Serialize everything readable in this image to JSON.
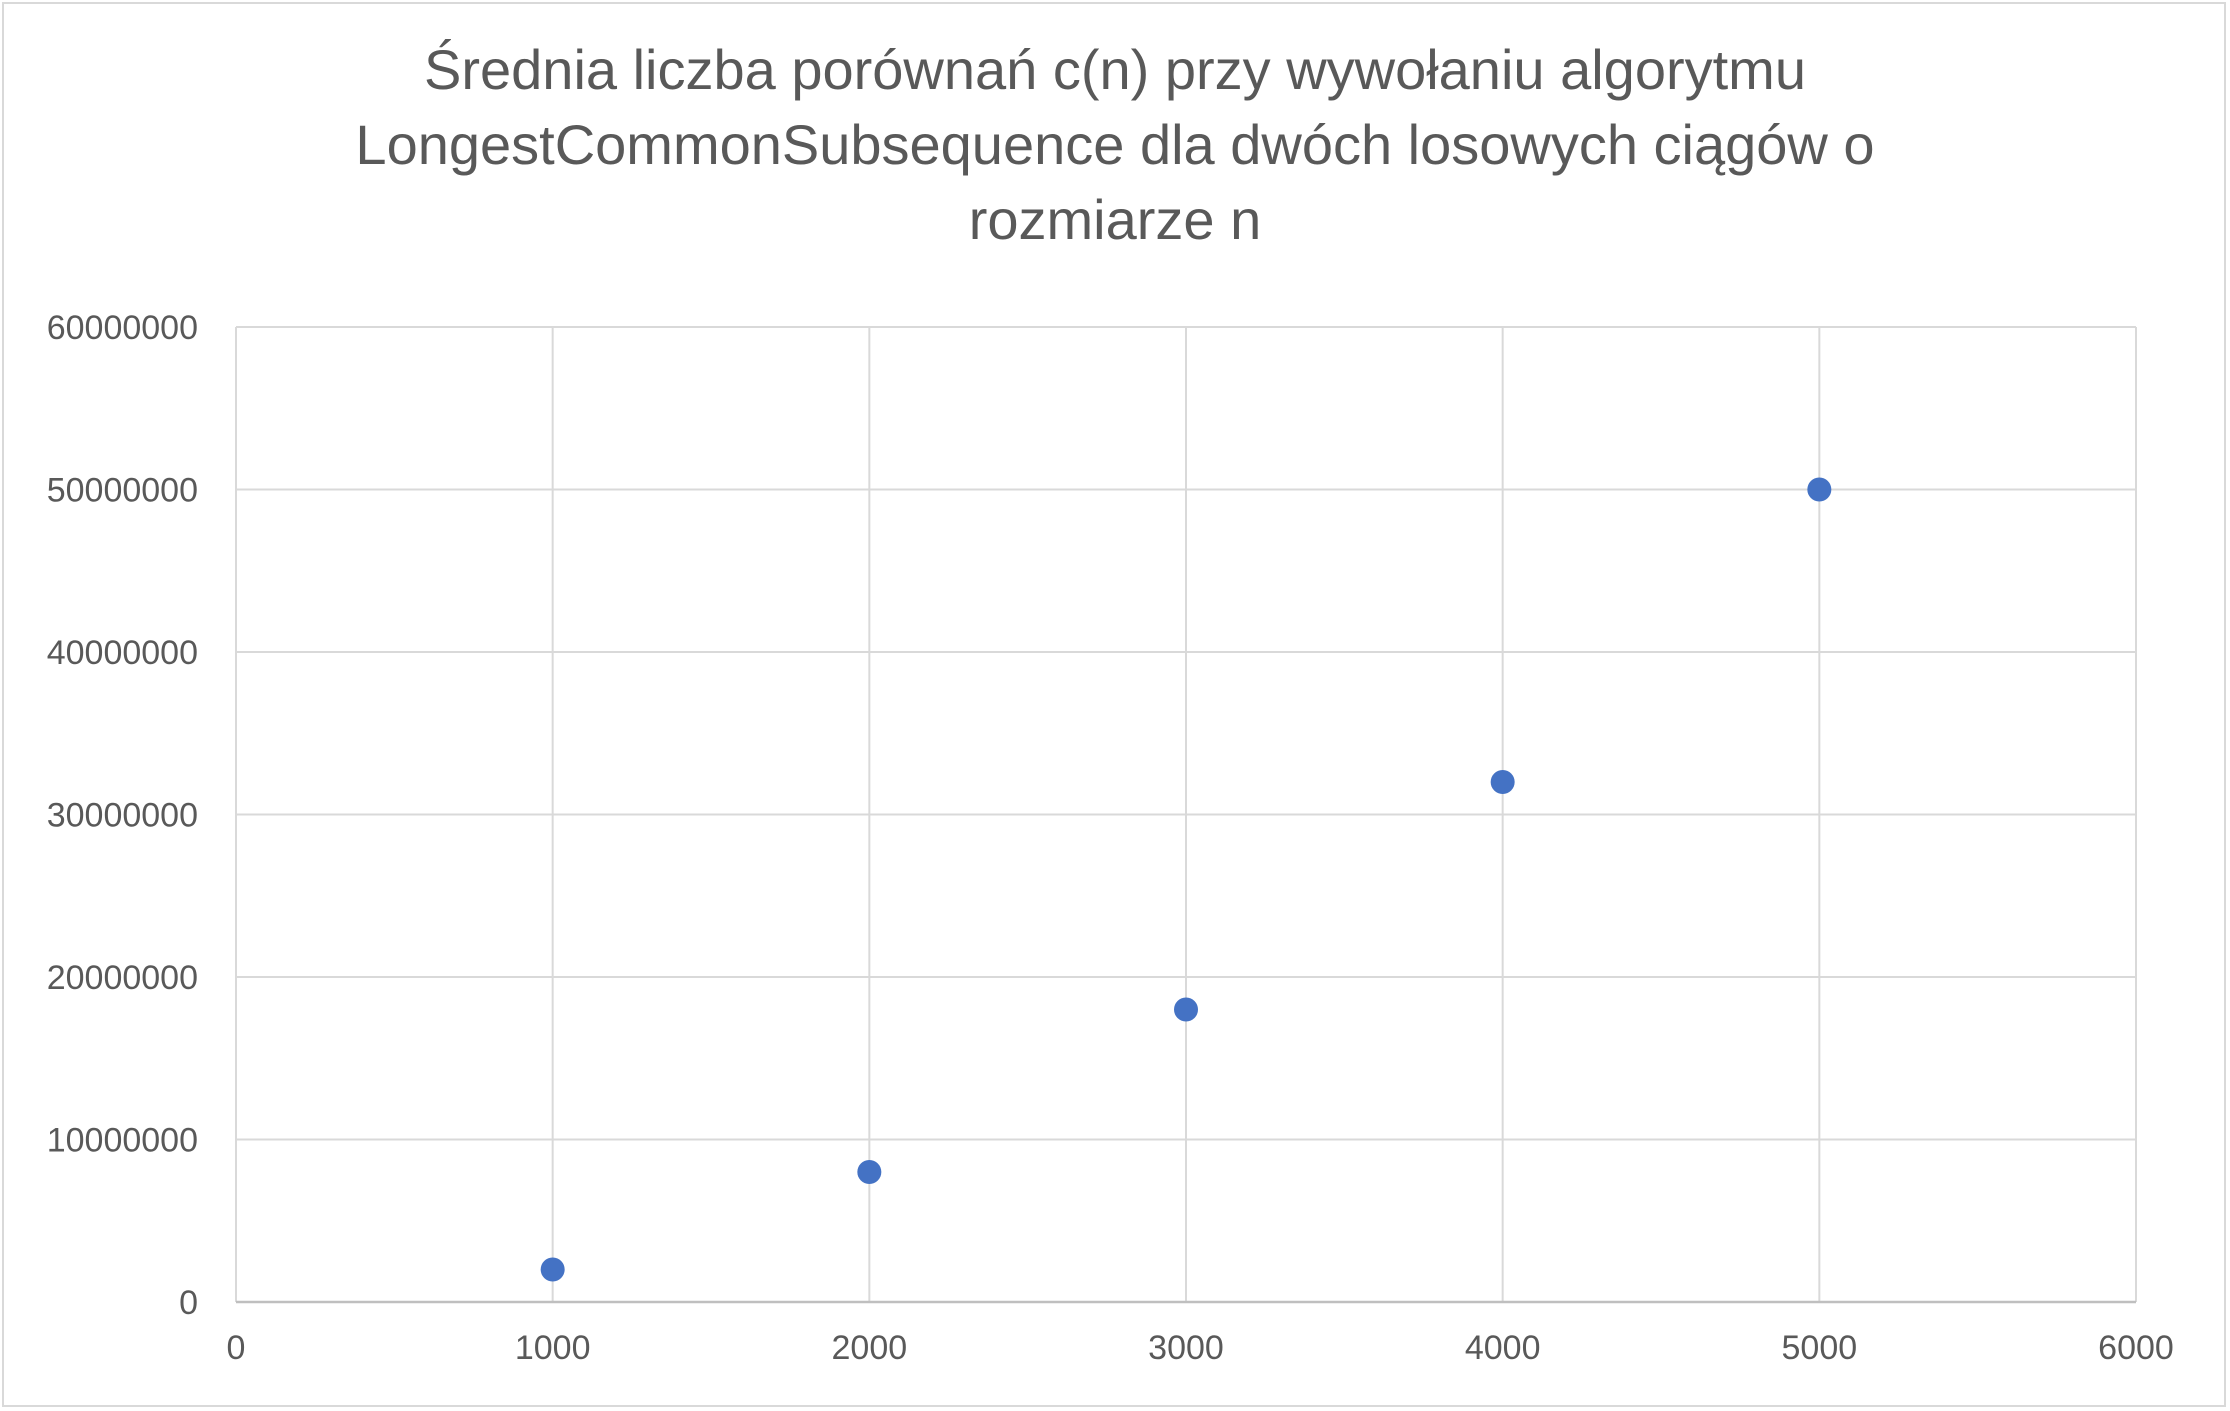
{
  "chart_data": {
    "type": "scatter",
    "title_lines": [
      "Średnia liczba porównań c(n) przy wywołaniu algorytmu",
      "LongestCommonSubsequence dla dwóch losowych ciągów o",
      "rozmiarze n"
    ],
    "xlabel": "",
    "ylabel": "",
    "xlim": [
      0,
      6000
    ],
    "ylim": [
      0,
      60000000
    ],
    "x_ticks": [
      "0",
      "1000",
      "2000",
      "3000",
      "4000",
      "5000",
      "6000"
    ],
    "y_ticks": [
      "0",
      "10000000",
      "20000000",
      "30000000",
      "40000000",
      "50000000",
      "60000000"
    ],
    "grid": true,
    "legend": "none",
    "series": [
      {
        "points": [
          {
            "x": 1000,
            "y": 2000000
          },
          {
            "x": 2000,
            "y": 8000000
          },
          {
            "x": 3000,
            "y": 18000000
          },
          {
            "x": 4000,
            "y": 32000000
          },
          {
            "x": 5000,
            "y": 50000000
          }
        ],
        "color": "#4472c4"
      }
    ],
    "colors": {
      "grid": "#d9d9d9",
      "axis_text": "#595959",
      "marker": "#4472c4"
    }
  }
}
